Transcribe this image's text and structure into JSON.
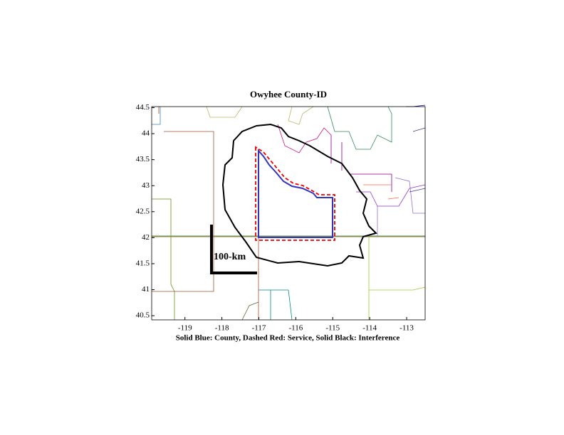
{
  "chart_data": {
    "type": "map",
    "title": "Owyhee County-ID",
    "xlabel": "Solid Blue: County, Dashed Red: Service, Solid Black: Interference",
    "scale_bar_label": "100-km",
    "xlim": [
      -119.9,
      -112.5
    ],
    "xticks": [
      -119,
      -118,
      -117,
      -116,
      -115,
      -114,
      -113
    ],
    "ylim": [
      40.42,
      44.52
    ],
    "yticks": [
      40.5,
      41,
      41.5,
      42,
      42.5,
      43,
      43.5,
      44,
      44.5
    ]
  }
}
